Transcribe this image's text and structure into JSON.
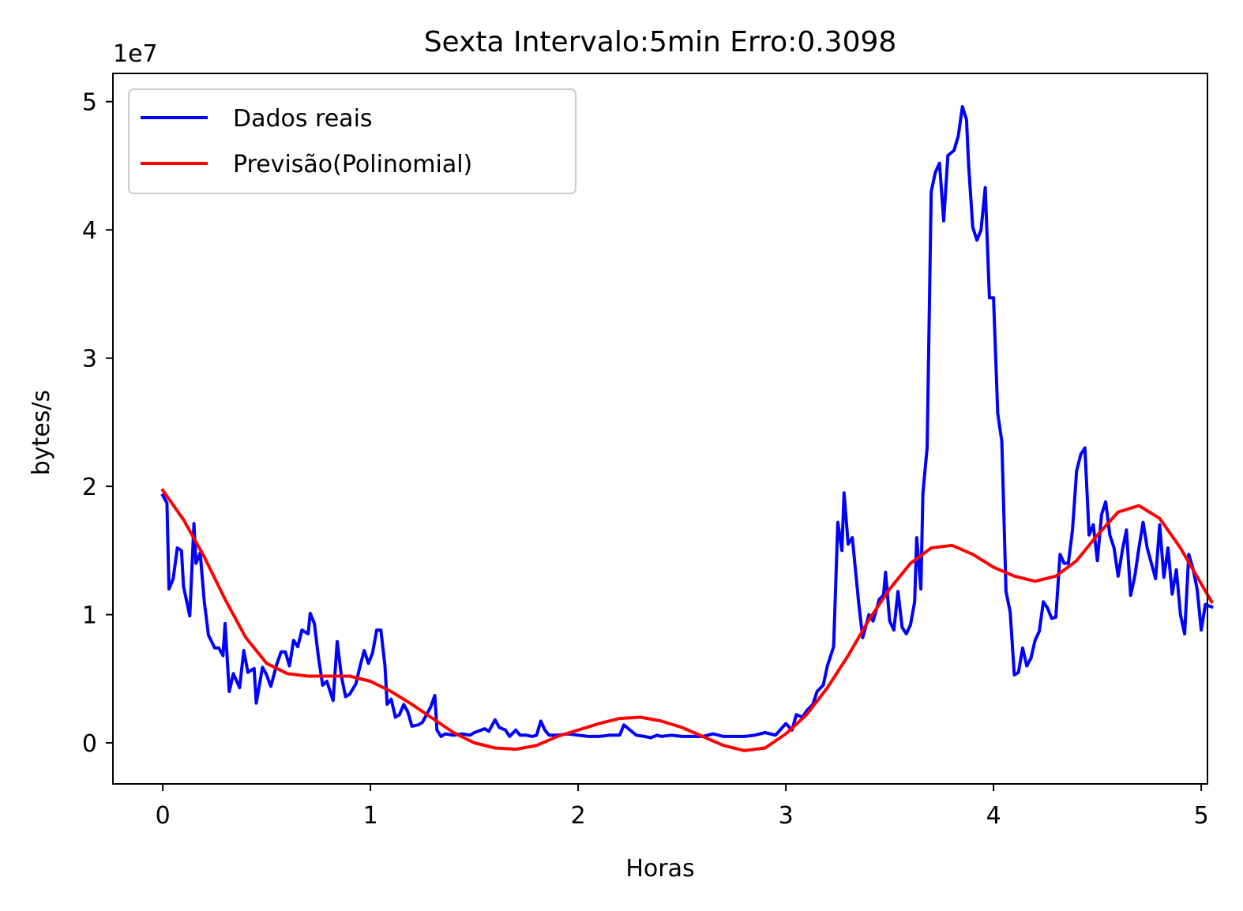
{
  "chart_data": {
    "type": "line",
    "title": "Sexta Intervalo:5min Erro:0.3098",
    "xlabel": "Horas",
    "ylabel": "bytes/s",
    "offset_label": "1e7",
    "xlim": [
      -0.24,
      5.03
    ],
    "ylim": [
      -0.32,
      5.22
    ],
    "x_ticks": [
      0,
      1,
      2,
      3,
      4,
      5
    ],
    "x_tick_labels": [
      "0",
      "1",
      "2",
      "3",
      "4",
      "5"
    ],
    "y_ticks": [
      0,
      1,
      2,
      3,
      4,
      5
    ],
    "y_tick_labels": [
      "0",
      "1",
      "2",
      "3",
      "4",
      "5"
    ],
    "grid": false,
    "legend_position": "upper-left",
    "series": [
      {
        "name": "Dados reais",
        "color": "#0000ff",
        "points": [
          [
            0,
            1.93
          ],
          [
            0.02,
            1.87
          ],
          [
            0.03,
            1.2
          ],
          [
            0.05,
            1.28
          ],
          [
            0.07,
            1.52
          ],
          [
            0.09,
            1.5
          ],
          [
            0.1,
            1.22
          ],
          [
            0.13,
            0.99
          ],
          [
            0.15,
            1.71
          ],
          [
            0.16,
            1.4
          ],
          [
            0.18,
            1.48
          ],
          [
            0.2,
            1.1
          ],
          [
            0.22,
            0.84
          ],
          [
            0.25,
            0.74
          ],
          [
            0.27,
            0.74
          ],
          [
            0.29,
            0.68
          ],
          [
            0.3,
            0.93
          ],
          [
            0.32,
            0.4
          ],
          [
            0.34,
            0.54
          ],
          [
            0.37,
            0.43
          ],
          [
            0.39,
            0.72
          ],
          [
            0.41,
            0.55
          ],
          [
            0.44,
            0.58
          ],
          [
            0.45,
            0.31
          ],
          [
            0.48,
            0.59
          ],
          [
            0.5,
            0.53
          ],
          [
            0.52,
            0.44
          ],
          [
            0.55,
            0.62
          ],
          [
            0.57,
            0.71
          ],
          [
            0.59,
            0.71
          ],
          [
            0.61,
            0.6
          ],
          [
            0.63,
            0.8
          ],
          [
            0.65,
            0.75
          ],
          [
            0.67,
            0.88
          ],
          [
            0.7,
            0.85
          ],
          [
            0.71,
            1.01
          ],
          [
            0.73,
            0.93
          ],
          [
            0.75,
            0.66
          ],
          [
            0.77,
            0.45
          ],
          [
            0.79,
            0.48
          ],
          [
            0.82,
            0.33
          ],
          [
            0.84,
            0.79
          ],
          [
            0.86,
            0.52
          ],
          [
            0.88,
            0.36
          ],
          [
            0.9,
            0.38
          ],
          [
            0.93,
            0.46
          ],
          [
            0.95,
            0.6
          ],
          [
            0.97,
            0.72
          ],
          [
            0.99,
            0.62
          ],
          [
            1.01,
            0.7
          ],
          [
            1.03,
            0.88
          ],
          [
            1.05,
            0.88
          ],
          [
            1.07,
            0.6
          ],
          [
            1.08,
            0.3
          ],
          [
            1.1,
            0.34
          ],
          [
            1.12,
            0.2
          ],
          [
            1.14,
            0.22
          ],
          [
            1.16,
            0.3
          ],
          [
            1.18,
            0.24
          ],
          [
            1.2,
            0.13
          ],
          [
            1.23,
            0.14
          ],
          [
            1.25,
            0.16
          ],
          [
            1.27,
            0.22
          ],
          [
            1.29,
            0.28
          ],
          [
            1.31,
            0.37
          ],
          [
            1.32,
            0.1
          ],
          [
            1.34,
            0.05
          ],
          [
            1.36,
            0.07
          ],
          [
            1.4,
            0.06
          ],
          [
            1.44,
            0.07
          ],
          [
            1.48,
            0.06
          ],
          [
            1.5,
            0.08
          ],
          [
            1.55,
            0.11
          ],
          [
            1.57,
            0.09
          ],
          [
            1.6,
            0.18
          ],
          [
            1.62,
            0.12
          ],
          [
            1.65,
            0.1
          ],
          [
            1.67,
            0.05
          ],
          [
            1.7,
            0.1
          ],
          [
            1.72,
            0.06
          ],
          [
            1.75,
            0.06
          ],
          [
            1.78,
            0.05
          ],
          [
            1.8,
            0.06
          ],
          [
            1.82,
            0.17
          ],
          [
            1.84,
            0.1
          ],
          [
            1.86,
            0.06
          ],
          [
            1.9,
            0.06
          ],
          [
            1.95,
            0.07
          ],
          [
            2,
            0.06
          ],
          [
            2.05,
            0.05
          ],
          [
            2.1,
            0.05
          ],
          [
            2.15,
            0.06
          ],
          [
            2.2,
            0.06
          ],
          [
            2.22,
            0.14
          ],
          [
            2.25,
            0.1
          ],
          [
            2.28,
            0.06
          ],
          [
            2.32,
            0.05
          ],
          [
            2.35,
            0.04
          ],
          [
            2.38,
            0.06
          ],
          [
            2.4,
            0.05
          ],
          [
            2.45,
            0.06
          ],
          [
            2.5,
            0.05
          ],
          [
            2.55,
            0.05
          ],
          [
            2.6,
            0.05
          ],
          [
            2.65,
            0.07
          ],
          [
            2.7,
            0.05
          ],
          [
            2.75,
            0.05
          ],
          [
            2.8,
            0.05
          ],
          [
            2.85,
            0.06
          ],
          [
            2.9,
            0.08
          ],
          [
            2.95,
            0.06
          ],
          [
            3,
            0.15
          ],
          [
            3.03,
            0.1
          ],
          [
            3.05,
            0.22
          ],
          [
            3.08,
            0.2
          ],
          [
            3.1,
            0.25
          ],
          [
            3.13,
            0.3
          ],
          [
            3.15,
            0.4
          ],
          [
            3.18,
            0.45
          ],
          [
            3.2,
            0.6
          ],
          [
            3.23,
            0.75
          ],
          [
            3.25,
            1.72
          ],
          [
            3.27,
            1.5
          ],
          [
            3.28,
            1.95
          ],
          [
            3.3,
            1.55
          ],
          [
            3.32,
            1.6
          ],
          [
            3.35,
            1.1
          ],
          [
            3.37,
            0.82
          ],
          [
            3.4,
            1.0
          ],
          [
            3.42,
            0.95
          ],
          [
            3.45,
            1.12
          ],
          [
            3.47,
            1.15
          ],
          [
            3.48,
            1.33
          ],
          [
            3.5,
            0.95
          ],
          [
            3.52,
            0.88
          ],
          [
            3.54,
            1.18
          ],
          [
            3.56,
            0.9
          ],
          [
            3.58,
            0.85
          ],
          [
            3.6,
            0.92
          ],
          [
            3.62,
            1.1
          ],
          [
            3.63,
            1.6
          ],
          [
            3.65,
            1.2
          ],
          [
            3.66,
            1.95
          ],
          [
            3.68,
            2.3
          ],
          [
            3.7,
            4.3
          ],
          [
            3.72,
            4.45
          ],
          [
            3.74,
            4.52
          ],
          [
            3.76,
            4.07
          ],
          [
            3.78,
            4.58
          ],
          [
            3.81,
            4.62
          ],
          [
            3.83,
            4.73
          ],
          [
            3.85,
            4.96
          ],
          [
            3.87,
            4.86
          ],
          [
            3.88,
            4.5
          ],
          [
            3.9,
            4.02
          ],
          [
            3.92,
            3.92
          ],
          [
            3.94,
            4.0
          ],
          [
            3.96,
            4.33
          ],
          [
            3.98,
            3.47
          ],
          [
            4,
            3.47
          ],
          [
            4.02,
            2.57
          ],
          [
            4.04,
            2.35
          ],
          [
            4.06,
            1.18
          ],
          [
            4.08,
            1.02
          ],
          [
            4.1,
            0.53
          ],
          [
            4.12,
            0.55
          ],
          [
            4.14,
            0.74
          ],
          [
            4.16,
            0.6
          ],
          [
            4.18,
            0.66
          ],
          [
            4.2,
            0.8
          ],
          [
            4.22,
            0.87
          ],
          [
            4.24,
            1.1
          ],
          [
            4.26,
            1.05
          ],
          [
            4.28,
            0.97
          ],
          [
            4.3,
            0.98
          ],
          [
            4.32,
            1.47
          ],
          [
            4.34,
            1.4
          ],
          [
            4.36,
            1.4
          ],
          [
            4.38,
            1.66
          ],
          [
            4.4,
            2.12
          ],
          [
            4.42,
            2.25
          ],
          [
            4.44,
            2.3
          ],
          [
            4.46,
            1.62
          ],
          [
            4.48,
            1.7
          ],
          [
            4.5,
            1.42
          ],
          [
            4.52,
            1.78
          ],
          [
            4.54,
            1.88
          ],
          [
            4.56,
            1.62
          ],
          [
            4.58,
            1.52
          ],
          [
            4.6,
            1.3
          ],
          [
            4.62,
            1.5
          ],
          [
            4.64,
            1.66
          ],
          [
            4.66,
            1.15
          ],
          [
            4.68,
            1.3
          ],
          [
            4.7,
            1.52
          ],
          [
            4.72,
            1.72
          ],
          [
            4.74,
            1.52
          ],
          [
            4.76,
            1.4
          ],
          [
            4.78,
            1.28
          ],
          [
            4.8,
            1.7
          ],
          [
            4.82,
            1.29
          ],
          [
            4.84,
            1.52
          ],
          [
            4.86,
            1.16
          ],
          [
            4.88,
            1.35
          ],
          [
            4.9,
            1.0
          ],
          [
            4.92,
            0.85
          ],
          [
            4.94,
            1.47
          ],
          [
            4.96,
            1.36
          ],
          [
            4.98,
            1.2
          ],
          [
            5,
            0.88
          ],
          [
            5.02,
            1.08
          ],
          [
            5.05,
            1.06
          ]
        ]
      },
      {
        "name": "Previsão(Polinomial)",
        "color": "#ff0000",
        "points": [
          [
            0,
            1.97
          ],
          [
            0.1,
            1.74
          ],
          [
            0.2,
            1.45
          ],
          [
            0.3,
            1.12
          ],
          [
            0.4,
            0.82
          ],
          [
            0.5,
            0.62
          ],
          [
            0.6,
            0.54
          ],
          [
            0.7,
            0.52
          ],
          [
            0.8,
            0.52
          ],
          [
            0.9,
            0.52
          ],
          [
            1,
            0.48
          ],
          [
            1.1,
            0.4
          ],
          [
            1.2,
            0.3
          ],
          [
            1.3,
            0.19
          ],
          [
            1.4,
            0.08
          ],
          [
            1.5,
            0.0
          ],
          [
            1.6,
            -0.04
          ],
          [
            1.7,
            -0.05
          ],
          [
            1.8,
            -0.02
          ],
          [
            1.9,
            0.05
          ],
          [
            2,
            0.1
          ],
          [
            2.1,
            0.15
          ],
          [
            2.2,
            0.19
          ],
          [
            2.3,
            0.2
          ],
          [
            2.4,
            0.17
          ],
          [
            2.5,
            0.12
          ],
          [
            2.6,
            0.05
          ],
          [
            2.7,
            -0.02
          ],
          [
            2.8,
            -0.06
          ],
          [
            2.9,
            -0.04
          ],
          [
            3,
            0.07
          ],
          [
            3.1,
            0.22
          ],
          [
            3.2,
            0.43
          ],
          [
            3.3,
            0.68
          ],
          [
            3.4,
            0.96
          ],
          [
            3.5,
            1.2
          ],
          [
            3.6,
            1.4
          ],
          [
            3.7,
            1.52
          ],
          [
            3.8,
            1.54
          ],
          [
            3.9,
            1.47
          ],
          [
            4,
            1.37
          ],
          [
            4.1,
            1.3
          ],
          [
            4.2,
            1.26
          ],
          [
            4.3,
            1.3
          ],
          [
            4.4,
            1.42
          ],
          [
            4.5,
            1.62
          ],
          [
            4.6,
            1.8
          ],
          [
            4.7,
            1.85
          ],
          [
            4.8,
            1.75
          ],
          [
            4.9,
            1.52
          ],
          [
            5.05,
            1.1
          ]
        ]
      }
    ]
  }
}
